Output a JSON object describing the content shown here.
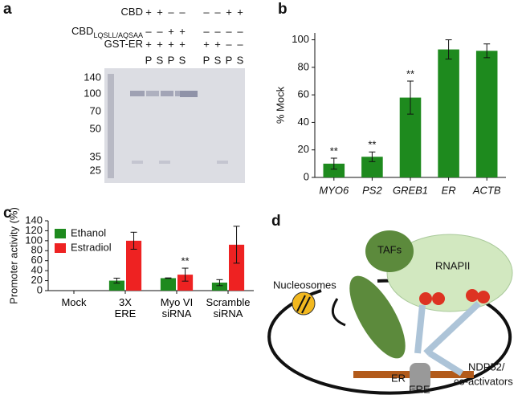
{
  "panel_labels": [
    "a",
    "b",
    "c",
    "d"
  ],
  "gel": {
    "rows": [
      {
        "label": "CBD",
        "signs": [
          "+",
          "+",
          "–",
          "–",
          "–",
          "–",
          "+",
          "+"
        ]
      },
      {
        "label": "CBD",
        "subscript": "LQSLL/AQSAA",
        "signs": [
          "–",
          "–",
          "+",
          "+",
          "–",
          "–",
          "–",
          "–"
        ]
      },
      {
        "label": "GST-ER",
        "signs": [
          "+",
          "+",
          "+",
          "+",
          "+",
          "+",
          "–",
          "–"
        ]
      }
    ],
    "lanes": [
      "P",
      "S",
      "P",
      "S",
      "P",
      "S",
      "P",
      "S"
    ],
    "markers": [
      140,
      100,
      70,
      50,
      35,
      25
    ]
  },
  "chart_data": [
    {
      "type": "bar",
      "y_label": "% Mock",
      "categories": [
        "MYO6",
        "PS2",
        "GREB1",
        "ER",
        "ACTB"
      ],
      "values": [
        10,
        15,
        58,
        93,
        92
      ],
      "errors": [
        4,
        3.5,
        12,
        7,
        5
      ],
      "annotations": [
        "**",
        "**",
        "**",
        null,
        null
      ],
      "color": "#1e8a1e",
      "ylim": [
        0,
        105
      ],
      "yticks": [
        0,
        20,
        40,
        60,
        80,
        100
      ]
    },
    {
      "type": "bar",
      "y_label": "Promoter activity (%)",
      "categories": [
        "Mock",
        "3X\nERE",
        "Myo VI\nsiRNA",
        "Scramble\nsiRNA"
      ],
      "series": [
        {
          "name": "Ethanol",
          "color": "#1e8a1e",
          "values": [
            0,
            20,
            25,
            16
          ],
          "errors": [
            0,
            5,
            0.5,
            6
          ]
        },
        {
          "name": "Estradiol",
          "color": "#ee2222",
          "values": [
            0,
            100,
            32,
            92
          ],
          "errors": [
            0,
            17,
            13,
            37
          ],
          "annotations": [
            null,
            null,
            "**",
            null
          ]
        }
      ],
      "legend": "top-left",
      "ylim": [
        0,
        140
      ],
      "yticks": [
        0,
        20,
        40,
        60,
        80,
        100,
        120,
        140
      ]
    }
  ],
  "diagram": {
    "nucleosomes": "Nucleosomes",
    "tafs": "TAFs",
    "rnapii": "RNAPII",
    "ndp52": "NDP52/",
    "coactivators": "co-activators",
    "er": "ER",
    "ere": "ERE"
  }
}
